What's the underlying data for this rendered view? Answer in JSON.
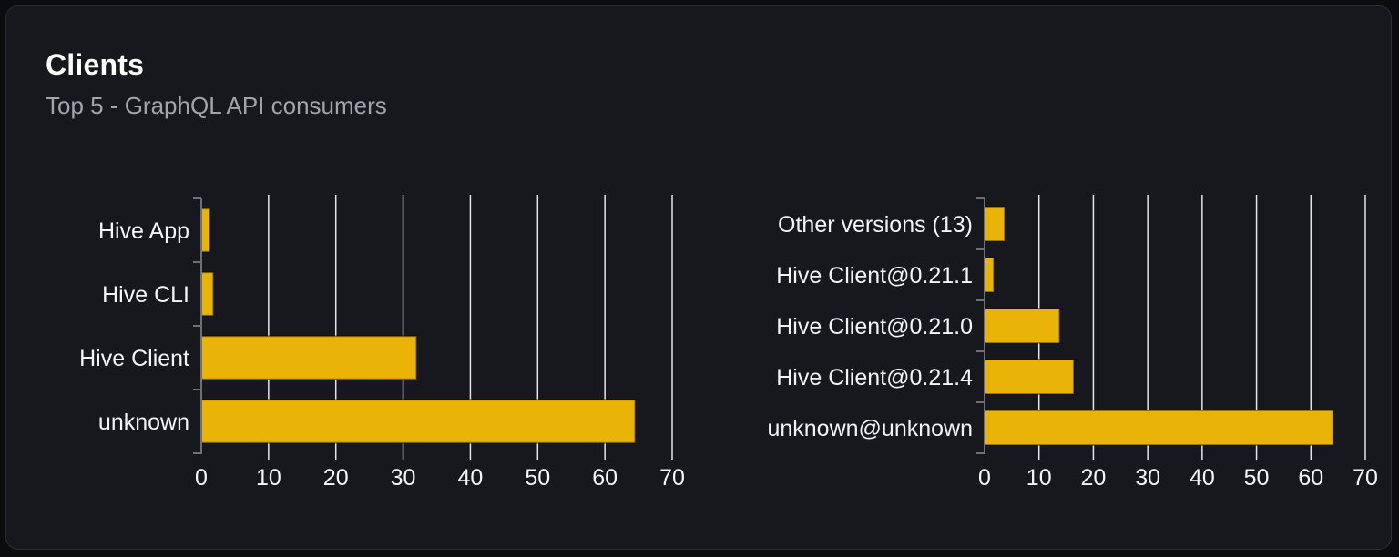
{
  "header": {
    "title": "Clients",
    "subtitle": "Top 5 - GraphQL API consumers"
  },
  "colors": {
    "bar": "#eab308",
    "bar_outline": "rgba(0,0,0,0.38)",
    "gridline": "#e3e6ec",
    "axis": "#6f7076",
    "label": "#f4f5f6",
    "title": "#ffffff",
    "subtitle": "#a1a4ab",
    "card_background": "#16181d",
    "card_border": "#2b2e35",
    "page_background": "#0b0c0e"
  },
  "chart_data": [
    {
      "type": "bar",
      "name": "clients-by-name",
      "orientation": "horizontal",
      "categories": [
        "Hive App",
        "Hive CLI",
        "Hive Client",
        "unknown"
      ],
      "values": [
        1.3,
        1.8,
        32,
        64.5
      ],
      "xlim": [
        0,
        70
      ],
      "xticks": [
        0,
        10,
        20,
        30,
        40,
        50,
        60,
        70
      ],
      "xlabel": "",
      "ylabel": "",
      "grid": true,
      "legend": false
    },
    {
      "type": "bar",
      "name": "clients-by-version",
      "orientation": "horizontal",
      "categories": [
        "Other versions (13)",
        "Hive Client@0.21.1",
        "Hive Client@0.21.0",
        "Hive Client@0.21.4",
        "unknown@unknown"
      ],
      "values": [
        3.7,
        1.7,
        13.8,
        16.4,
        64.1
      ],
      "xlim": [
        0,
        70
      ],
      "xticks": [
        0,
        10,
        20,
        30,
        40,
        50,
        60,
        70
      ],
      "xlabel": "",
      "ylabel": "",
      "grid": true,
      "legend": false
    }
  ]
}
